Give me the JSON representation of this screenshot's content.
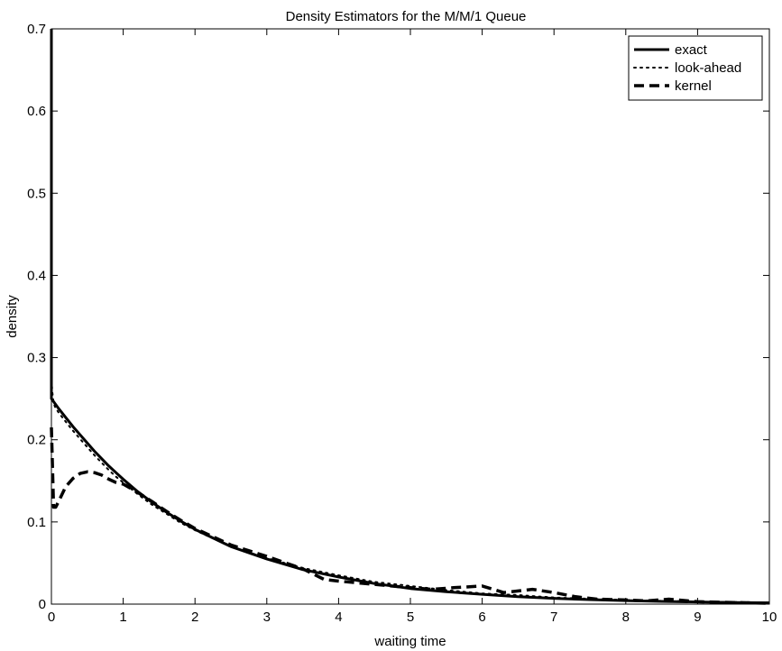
{
  "chart_data": {
    "type": "line",
    "title": "Density Estimators for the M/M/1 Queue",
    "xlabel": "waiting time",
    "ylabel": "density",
    "xlim": [
      0,
      10
    ],
    "ylim": [
      0,
      0.7
    ],
    "xticks": [
      0,
      1,
      2,
      3,
      4,
      5,
      6,
      7,
      8,
      9,
      10
    ],
    "yticks": [
      0,
      0.1,
      0.2,
      0.3,
      0.4,
      0.5,
      0.6,
      0.7
    ],
    "grid": false,
    "legend_position": "top-right",
    "series": [
      {
        "name": "exact",
        "style": "solid",
        "color": "#000000",
        "x": [
          0,
          0.0,
          0.05,
          0.1,
          0.2,
          0.3,
          0.4,
          0.5,
          0.6,
          0.7,
          0.8,
          0.9,
          1.0,
          1.2,
          1.4,
          1.6,
          1.8,
          2.0,
          2.5,
          3.0,
          3.5,
          4.0,
          4.5,
          5.0,
          5.5,
          6.0,
          6.5,
          7.0,
          7.5,
          8.0,
          8.5,
          9.0,
          9.5,
          10.0
        ],
        "y": [
          0.7,
          0.25,
          0.244,
          0.238,
          0.227,
          0.216,
          0.206,
          0.196,
          0.186,
          0.177,
          0.168,
          0.16,
          0.152,
          0.137,
          0.124,
          0.112,
          0.101,
          0.091,
          0.07,
          0.055,
          0.042,
          0.033,
          0.025,
          0.019,
          0.015,
          0.012,
          0.009,
          0.007,
          0.0055,
          0.0043,
          0.0033,
          0.0026,
          0.002,
          0.0015
        ]
      },
      {
        "name": "look-ahead",
        "style": "dotted",
        "color": "#000000",
        "x": [
          0,
          0.01,
          0.03,
          0.05,
          0.1,
          0.2,
          0.3,
          0.4,
          0.5,
          0.6,
          0.7,
          0.8,
          0.9,
          1.0,
          1.2,
          1.4,
          1.6,
          1.8,
          2.0,
          2.5,
          3.0,
          3.5,
          4.0,
          4.5,
          5.0,
          5.5,
          6.0,
          6.5,
          7.0,
          7.5,
          8.0,
          8.5,
          9.0,
          9.5,
          10.0
        ],
        "y": [
          0.28,
          0.26,
          0.245,
          0.24,
          0.233,
          0.222,
          0.211,
          0.201,
          0.191,
          0.181,
          0.172,
          0.163,
          0.155,
          0.148,
          0.134,
          0.121,
          0.11,
          0.099,
          0.09,
          0.07,
          0.056,
          0.044,
          0.035,
          0.027,
          0.022,
          0.017,
          0.013,
          0.011,
          0.008,
          0.0065,
          0.005,
          0.004,
          0.003,
          0.0025,
          0.002
        ]
      },
      {
        "name": "kernel",
        "style": "dashed",
        "color": "#000000",
        "x": [
          0,
          0.03,
          0.06,
          0.1,
          0.2,
          0.3,
          0.4,
          0.5,
          0.6,
          0.7,
          0.8,
          0.9,
          1.0,
          1.2,
          1.4,
          1.6,
          1.8,
          2.0,
          2.5,
          3.0,
          3.5,
          3.8,
          4.0,
          4.5,
          5.0,
          5.3,
          5.6,
          6.0,
          6.3,
          6.7,
          7.0,
          7.3,
          7.6,
          8.0,
          8.3,
          8.6,
          9.0,
          9.5,
          10.0
        ],
        "y": [
          0.215,
          0.118,
          0.118,
          0.125,
          0.143,
          0.153,
          0.159,
          0.161,
          0.16,
          0.157,
          0.152,
          0.148,
          0.146,
          0.136,
          0.125,
          0.113,
          0.102,
          0.092,
          0.072,
          0.058,
          0.043,
          0.03,
          0.028,
          0.024,
          0.02,
          0.018,
          0.02,
          0.022,
          0.014,
          0.018,
          0.014,
          0.009,
          0.006,
          0.005,
          0.004,
          0.006,
          0.003,
          0.002,
          0.001
        ]
      }
    ]
  }
}
